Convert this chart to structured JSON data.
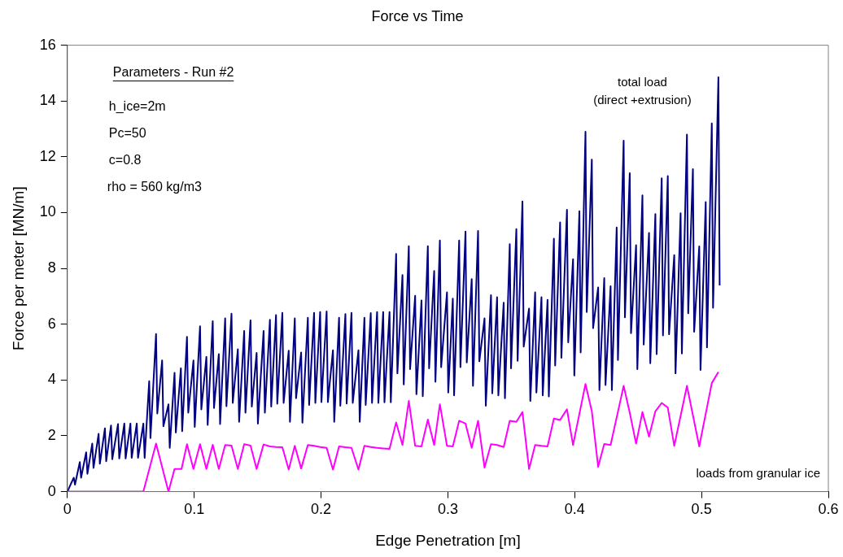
{
  "chart_data": {
    "type": "line",
    "title": "Force vs Time",
    "xlabel": "Edge Penetration [m]",
    "ylabel": "Force per meter [MN/m]",
    "xlim": [
      0,
      0.6
    ],
    "xticks": [
      0,
      0.1,
      0.2,
      0.3,
      0.4,
      0.5,
      0.6
    ],
    "ylim": [
      0,
      16
    ],
    "yticks": [
      0,
      2,
      4,
      6,
      8,
      10,
      12,
      14,
      16
    ],
    "grid": false,
    "legend": false,
    "marker": "none",
    "line_style": "solid",
    "annotations": [
      "Parameters - Run #2",
      "h_ice=2m",
      "Pc=50",
      "c=0.8",
      "rho = 560 kg/m3"
    ],
    "series": [
      {
        "name": "total load\n(direct +extrusion)",
        "color": "#000080",
        "x": [
          0,
          0.005,
          0.006,
          0.0098,
          0.0108,
          0.0148,
          0.0158,
          0.0196,
          0.0206,
          0.0246,
          0.0256,
          0.0296,
          0.0306,
          0.0344,
          0.0354,
          0.0399,
          0.0409,
          0.0449,
          0.0459,
          0.0497,
          0.0507,
          0.0547,
          0.0557,
          0.0599,
          0.0609,
          0.0645,
          0.0655,
          0.0699,
          0.0709,
          0.0747,
          0.0757,
          0.0797,
          0.0807,
          0.0845,
          0.0855,
          0.0895,
          0.0905,
          0.0943,
          0.0953,
          0.0994,
          0.1004,
          0.1046,
          0.1056,
          0.1096,
          0.1106,
          0.1146,
          0.1156,
          0.1194,
          0.1204,
          0.1244,
          0.1254,
          0.1294,
          0.1304,
          0.1344,
          0.1354,
          0.1394,
          0.1404,
          0.1444,
          0.1454,
          0.1492,
          0.1502,
          0.1547,
          0.1557,
          0.1597,
          0.1607,
          0.1645,
          0.1655,
          0.1695,
          0.1705,
          0.1745,
          0.1755,
          0.1793,
          0.1803,
          0.1843,
          0.1853,
          0.1896,
          0.1906,
          0.1945,
          0.1955,
          0.1993,
          0.2003,
          0.2044,
          0.2054,
          0.2094,
          0.2104,
          0.2142,
          0.2152,
          0.2192,
          0.2202,
          0.224,
          0.225,
          0.2295,
          0.2305,
          0.2342,
          0.2352,
          0.2392,
          0.2402,
          0.2442,
          0.2452,
          0.249,
          0.25,
          0.254,
          0.255,
          0.2592,
          0.2602,
          0.2642,
          0.2652,
          0.2692,
          0.2702,
          0.2742,
          0.2752,
          0.2792,
          0.2802,
          0.2842,
          0.2852,
          0.2892,
          0.2902,
          0.2937,
          0.2947,
          0.2993,
          0.3003,
          0.3039,
          0.3049,
          0.3089,
          0.3099,
          0.3139,
          0.3149,
          0.3188,
          0.3198,
          0.3238,
          0.3248,
          0.3289,
          0.3299,
          0.334,
          0.335,
          0.3388,
          0.3398,
          0.344,
          0.345,
          0.3488,
          0.3498,
          0.354,
          0.355,
          0.3588,
          0.3598,
          0.364,
          0.365,
          0.3688,
          0.3698,
          0.3738,
          0.3748,
          0.3786,
          0.3796,
          0.3836,
          0.3846,
          0.3885,
          0.3895,
          0.3939,
          0.3949,
          0.3987,
          0.3997,
          0.4037,
          0.4047,
          0.4085,
          0.4095,
          0.4135,
          0.4145,
          0.4185,
          0.4195,
          0.4233,
          0.4243,
          0.4283,
          0.4293,
          0.4331,
          0.4341,
          0.4386,
          0.4396,
          0.4434,
          0.4444,
          0.4484,
          0.4494,
          0.4534,
          0.4544,
          0.4586,
          0.4596,
          0.4636,
          0.4646,
          0.4686,
          0.4696,
          0.4734,
          0.4744,
          0.4785,
          0.4795,
          0.4835,
          0.4845,
          0.4885,
          0.4895,
          0.4932,
          0.4942,
          0.4982,
          0.4992,
          0.5033,
          0.5043,
          0.5081,
          0.5091,
          0.5133,
          0.5143
        ],
        "values": [
          0,
          0.5,
          0.25,
          1.06,
          0.5,
          1.41,
          0.64,
          1.72,
          0.85,
          2.07,
          1.0,
          2.27,
          1.09,
          2.37,
          1.16,
          2.42,
          1.19,
          2.44,
          1.19,
          2.44,
          1.21,
          2.44,
          1.21,
          2.44,
          1.21,
          3.96,
          1.92,
          5.65,
          2.8,
          4.7,
          2.34,
          3.13,
          1.57,
          4.26,
          2.12,
          4.42,
          2.17,
          5.55,
          2.83,
          4.7,
          2.32,
          5.93,
          2.95,
          4.83,
          2.39,
          6.11,
          3.0,
          4.93,
          2.42,
          6.21,
          3.06,
          6.38,
          3.18,
          5.1,
          2.5,
          5.76,
          2.83,
          6.14,
          3.05,
          4.97,
          2.44,
          5.76,
          2.83,
          6.16,
          3.05,
          6.33,
          3.15,
          6.41,
          3.18,
          5.05,
          2.5,
          6.21,
          3.35,
          4.99,
          2.47,
          6.23,
          3.11,
          6.41,
          3.18,
          6.44,
          3.21,
          6.46,
          3.21,
          5.07,
          2.5,
          6.23,
          3.08,
          6.36,
          3.16,
          6.41,
          3.18,
          5.07,
          2.5,
          6.23,
          3.11,
          6.4,
          3.18,
          6.44,
          3.18,
          6.44,
          3.2,
          6.44,
          3.2,
          8.52,
          4.24,
          7.76,
          3.84,
          8.8,
          4.39,
          7.02,
          3.49,
          6.85,
          3.42,
          8.8,
          4.42,
          7.91,
          3.94,
          9.0,
          4.46,
          7.14,
          3.55,
          6.92,
          3.45,
          9.0,
          4.46,
          9.32,
          4.63,
          7.62,
          3.79,
          9.34,
          4.67,
          6.21,
          3.08,
          7.04,
          3.52,
          6.97,
          3.45,
          6.77,
          3.35,
          8.87,
          4.42,
          9.41,
          4.69,
          10.4,
          5.2,
          6.56,
          3.25,
          7.14,
          3.55,
          6.97,
          3.45,
          6.87,
          3.41,
          9.07,
          4.52,
          9.65,
          4.8,
          10.1,
          5.35,
          8.33,
          4.16,
          10.05,
          4.99,
          12.9,
          6.44,
          11.9,
          5.86,
          7.32,
          3.64,
          7.65,
          3.82,
          7.36,
          3.64,
          9.47,
          4.72,
          12.58,
          6.25,
          11.41,
          5.68,
          8.83,
          4.39,
          10.62,
          5.27,
          9.27,
          4.6,
          9.95,
          4.93,
          11.23,
          5.6,
          11.31,
          5.64,
          8.48,
          4.24,
          9.98,
          4.95,
          12.8,
          6.39,
          11.56,
          5.73,
          8.79,
          4.36,
          10.38,
          5.17,
          13.2,
          6.59,
          14.85,
          7.39
        ]
      },
      {
        "name": "loads from granular ice",
        "color": "#ff00ff",
        "x": [
          0,
          0.0599,
          0.0699,
          0.0797,
          0.0845,
          0.09,
          0.0943,
          0.0994,
          0.1046,
          0.1096,
          0.1146,
          0.1194,
          0.1244,
          0.1294,
          0.1344,
          0.1394,
          0.1444,
          0.1492,
          0.1547,
          0.1597,
          0.1645,
          0.1695,
          0.1745,
          0.1793,
          0.1843,
          0.1896,
          0.1945,
          0.1993,
          0.2044,
          0.2094,
          0.2142,
          0.2192,
          0.224,
          0.2295,
          0.2342,
          0.2392,
          0.2442,
          0.249,
          0.254,
          0.2592,
          0.2642,
          0.2692,
          0.2742,
          0.2792,
          0.2842,
          0.2892,
          0.2937,
          0.2993,
          0.3039,
          0.3089,
          0.3139,
          0.3188,
          0.3238,
          0.3289,
          0.334,
          0.3388,
          0.344,
          0.3488,
          0.354,
          0.3588,
          0.364,
          0.3688,
          0.3738,
          0.3786,
          0.3836,
          0.3885,
          0.3939,
          0.3987,
          0.4085,
          0.4135,
          0.4185,
          0.4233,
          0.4283,
          0.4386,
          0.4434,
          0.4484,
          0.4534,
          0.4586,
          0.4636,
          0.4686,
          0.4734,
          0.4785,
          0.4885,
          0.4982,
          0.5081,
          0.5133
        ],
        "values": [
          0,
          0,
          1.72,
          0,
          0.81,
          0.81,
          1.7,
          0.81,
          1.7,
          0.81,
          1.68,
          0.81,
          1.67,
          1.65,
          0.81,
          1.7,
          1.65,
          0.81,
          1.69,
          1.62,
          1.6,
          1.59,
          0.79,
          1.64,
          0.83,
          1.67,
          1.64,
          1.6,
          1.57,
          0.79,
          1.62,
          1.59,
          1.57,
          0.79,
          1.64,
          1.6,
          1.57,
          1.55,
          1.53,
          2.48,
          1.67,
          3.25,
          1.64,
          1.62,
          2.58,
          1.67,
          3.13,
          1.64,
          1.62,
          2.54,
          2.44,
          1.57,
          2.54,
          0.86,
          1.7,
          1.67,
          1.6,
          2.54,
          2.5,
          2.85,
          0.81,
          1.67,
          1.64,
          1.62,
          2.62,
          2.57,
          2.95,
          1.67,
          3.86,
          2.88,
          0.89,
          1.71,
          1.67,
          3.79,
          2.83,
          1.72,
          2.85,
          1.97,
          2.88,
          3.18,
          3.01,
          1.64,
          3.79,
          1.62,
          3.89,
          4.29
        ]
      }
    ]
  }
}
